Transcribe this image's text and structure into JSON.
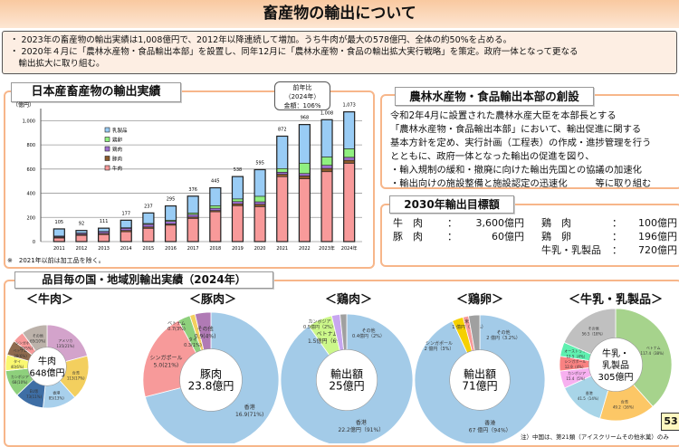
{
  "title": "畜産物の輸出について",
  "notes": [
    "・ 2023年の畜産物の輸出実績は1,008億円で、2012年以降連続して増加。うち牛肉が最大の578億円、全体の約50%を占める。",
    "・ 2020年４月に「農林水産物・食品輸出本部」を設置し、同年12月に「農林水産物・食品の輸出拡大実行戦略」を策定。政府一体となって更なる",
    "　輸出拡大に取り組む。"
  ],
  "left_panel": {
    "title": "日本産畜産物の輸出実績",
    "unit": "（億円）",
    "callout": [
      "前年比",
      "（2024年）",
      "金額：106%"
    ],
    "footnote": "※　2021年以前は加工品を除く。"
  },
  "chart_data": [
    {
      "type": "bar",
      "stacked": true,
      "ylabel": "（億円）",
      "ylim": [
        0,
        1100
      ],
      "yticks": [
        0,
        200,
        400,
        600,
        800,
        1000
      ],
      "ytick_labels": [
        "0",
        "200",
        "400",
        "600",
        "800",
        "1,000"
      ],
      "grid": true,
      "legend": "top-left",
      "categories": [
        "2011",
        "2012",
        "2013",
        "2014",
        "2015",
        "2016",
        "2017",
        "2018",
        "2019",
        "2020",
        "2021",
        "2022",
        "2023年",
        "2024年"
      ],
      "totals": [
        105,
        92,
        111,
        177,
        237,
        295,
        376,
        445,
        538,
        595,
        872,
        968,
        1008,
        1073
      ],
      "total_labels": [
        "105",
        "92",
        "111",
        "177",
        "237",
        "295",
        "376",
        "445",
        "538",
        "595",
        "872",
        "968",
        "1,008",
        "1,073"
      ],
      "series": [
        {
          "name": "牛肉",
          "color": "#f89a9a",
          "values": [
            30,
            51,
            58,
            82,
            110,
            136,
            192,
            247,
            297,
            289,
            537,
            520,
            578,
            648
          ]
        },
        {
          "name": "豚肉",
          "color": "#8b5a2b",
          "values": [
            7,
            7,
            9,
            10,
            11,
            10,
            11,
            10,
            15,
            19,
            20,
            23,
            27,
            24
          ]
        },
        {
          "name": "鶏肉",
          "color": "#a070d0",
          "values": [
            6,
            10,
            14,
            18,
            22,
            22,
            21,
            19,
            19,
            21,
            17,
            20,
            26,
            25
          ]
        },
        {
          "name": "鶏卵",
          "color": "#90f080",
          "values": [
            3,
            3,
            3,
            5,
            7,
            9,
            13,
            21,
            22,
            46,
            30,
            86,
            69,
            71
          ]
        },
        {
          "name": "乳製品",
          "color": "#99ccf5",
          "values": [
            59,
            21,
            27,
            62,
            87,
            118,
            139,
            148,
            185,
            220,
            268,
            319,
            308,
            305
          ]
        }
      ]
    },
    {
      "type": "pie",
      "title": "＜牛肉＞",
      "center": [
        "牛肉",
        "648億円"
      ],
      "slices": [
        {
          "label": "アメリカ",
          "value": 135,
          "text": "135(21%)",
          "color": "#d3a3cb"
        },
        {
          "label": "台湾",
          "value": 113,
          "text": "113(17%)",
          "color": "#f3cf5e"
        },
        {
          "label": "香港",
          "value": 85,
          "text": "85(13%)",
          "color": "#a8d0ec"
        },
        {
          "label": "EU等",
          "value": 73,
          "text": "73(11%)",
          "color": "#3e6ea5"
        },
        {
          "label": "カンボジア",
          "value": 68,
          "text": "68(10%)",
          "color": "#8ed07c"
        },
        {
          "label": "タイ",
          "value": 40,
          "text": "40(6%)",
          "color": "#faf870"
        },
        {
          "label": "ベトナム",
          "value": 38,
          "text": "38(6%)",
          "color": "#8e6a4e"
        },
        {
          "label": "シンガポール",
          "value": 29,
          "text": "29(5%)",
          "color": "#f79a9a"
        },
        {
          "label": "その他",
          "value": 65,
          "text": "65(10%)",
          "color": "#bcb2aa"
        }
      ]
    },
    {
      "type": "pie",
      "title": "＜豚肉＞",
      "center": [
        "豚肉",
        "23.8億円"
      ],
      "slices": [
        {
          "label": "香港",
          "value": 16.9,
          "text": "16.9(71%)",
          "color": "#a3cbe8"
        },
        {
          "label": "シンガポール",
          "value": 5.0,
          "text": "5.0(21%)",
          "color": "#f79a9a"
        },
        {
          "label": "ベトナム",
          "value": 0.7,
          "text": "0.7(3%)",
          "color": "#8ed07c"
        },
        {
          "label": "タイ",
          "value": 0.3,
          "text": "0.3(1%)",
          "color": "#f3cf5e"
        },
        {
          "label": "その他",
          "value": 0.9,
          "text": "0.9(4%)",
          "color": "#b07ab5"
        }
      ]
    },
    {
      "type": "pie",
      "title": "＜鶏肉＞",
      "center": [
        "輸出額",
        "25億円"
      ],
      "slices": [
        {
          "label": "香港",
          "value": 22.2,
          "text": "22.2億円（91%）",
          "color": "#a3cbe8"
        },
        {
          "label": "ベトナム",
          "value": 1.5,
          "text": "1.5億円（6%）",
          "color": "#ccf78a"
        },
        {
          "label": "カンボジア",
          "value": 0.5,
          "text": "0.5億円（2%）",
          "color": "#c7a6f0"
        },
        {
          "label": "その他",
          "value": 0.4,
          "text": "0.4億円（2%）",
          "color": "#a0a0a0"
        }
      ]
    },
    {
      "type": "pie",
      "title": "＜鶏卵＞",
      "center": [
        "輸出額",
        "71億円"
      ],
      "slices": [
        {
          "label": "香港",
          "value": 67,
          "text": "67 億円（94%）",
          "color": "#a3cbe8"
        },
        {
          "label": "シンガポール",
          "value": 2,
          "text": "2 億円（3%）",
          "color": "#f5d000"
        },
        {
          "label": "米国",
          "value": 1,
          "text": "1 億円（1.5%）",
          "color": "#f79a9a"
        },
        {
          "label": "その他",
          "value": 2,
          "text": "2 億円（3.2%）",
          "color": "#a0a0a0"
        }
      ]
    },
    {
      "type": "pie",
      "title": "＜牛乳・乳製品＞",
      "center": [
        "牛乳・",
        "乳製品",
        "305億円"
      ],
      "slices": [
        {
          "label": "ベトナム",
          "value": 117.4,
          "text": "117.4（38%）",
          "color": "#a6d38c"
        },
        {
          "label": "台湾",
          "value": 49.2,
          "text": "49.2（16%）",
          "color": "#fcc766"
        },
        {
          "label": "香港",
          "value": 41.5,
          "text": "41.5（14%）",
          "color": "#a8d5e8"
        },
        {
          "label": "カンボジア",
          "value": 15.4,
          "text": "15.4（5%）",
          "color": "#f7b0f0"
        },
        {
          "label": "シンガポール",
          "value": 12.9,
          "text": "12.9（4%）",
          "color": "#f98282"
        },
        {
          "label": "オーストラリア",
          "value": 12.5,
          "text": "12.5（4%）",
          "color": "#5ff0b0"
        },
        {
          "label": "その他",
          "value": 56.5,
          "text": "56.5（18%）",
          "color": "#c0c0c0"
        }
      ]
    }
  ],
  "right_panel": {
    "title": "農林水産物・食品輸出本部の創設",
    "lines": [
      "令和2年4月に設置された農林水産大臣を本部長とする",
      "「農林水産物・食品輸出本部」において、輸出促進に関する",
      "基本方針を定め、実行計画（工程表）の作成・進捗管理を行う",
      "とともに、政府一体となった輸出の促進を図り、",
      "・輸入規制の緩和・撤廃に向けた輸出先国との協議の加速化",
      "・輸出向けの施設整備と施設認定の迅速化　　　等に取り組む"
    ]
  },
  "targets": {
    "title": "2030年輸出目標額",
    "items": [
      {
        "label": "牛　肉",
        "value": "3,600億円"
      },
      {
        "label": "豚　肉",
        "value": "60億円"
      },
      {
        "label": "鶏　肉",
        "value": "100億円"
      },
      {
        "label": "鶏　卵",
        "value": "196億円"
      },
      {
        "label": "牛乳・乳製品",
        "value": "720億円"
      }
    ]
  },
  "bottom_panel": {
    "title": "品目毎の国・地域別輸出実績（2024年）",
    "footnote": "注）中国は、第21類（アイスクリームその他氷菓）のみ"
  },
  "page_number": "53"
}
